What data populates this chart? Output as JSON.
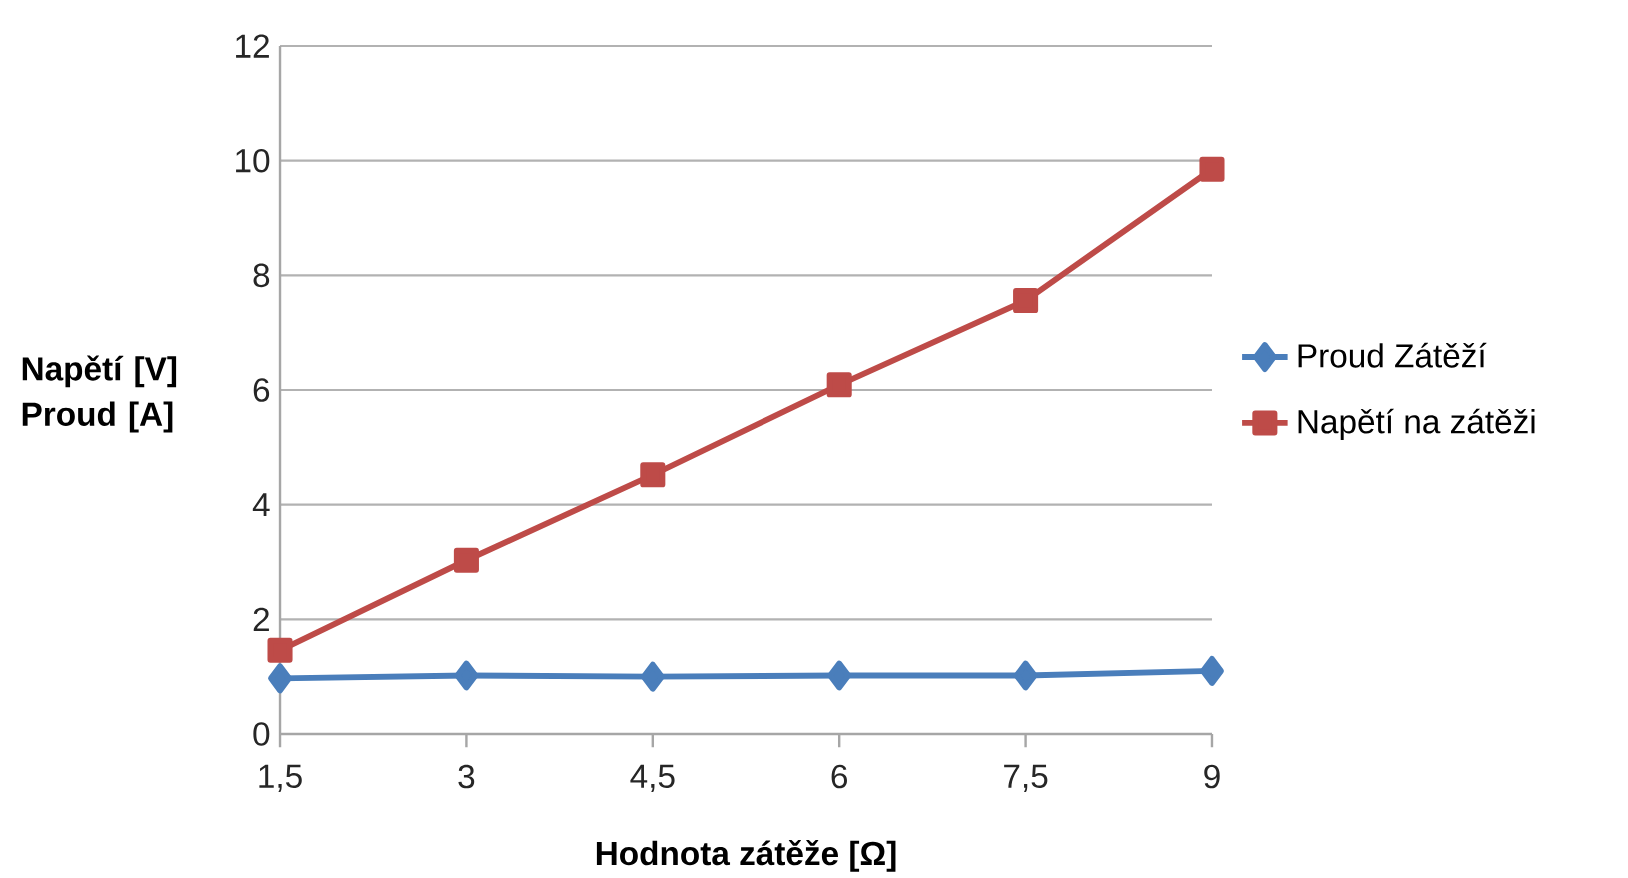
{
  "chart_data": {
    "type": "line",
    "xlabel": "Hodnota zátěže [Ω]",
    "ylabel": "Napětí [V] Proud [A]",
    "categories": [
      "1,5",
      "3",
      "4,5",
      "6",
      "7,5",
      "9"
    ],
    "series": [
      {
        "name": "Proud Zátěží",
        "color": "#4a7ebb",
        "marker": "diamond",
        "values": [
          0.97,
          1.02,
          1.0,
          1.02,
          1.02,
          1.1
        ]
      },
      {
        "name": "Napětí na zátěži",
        "color": "#be4b48",
        "marker": "square",
        "values": [
          1.46,
          3.03,
          4.52,
          6.09,
          7.56,
          9.85
        ]
      }
    ],
    "ylim": [
      0,
      12
    ],
    "yticks": [
      0,
      2,
      4,
      6,
      8,
      10,
      12
    ],
    "grid": "y",
    "legend": "right"
  }
}
